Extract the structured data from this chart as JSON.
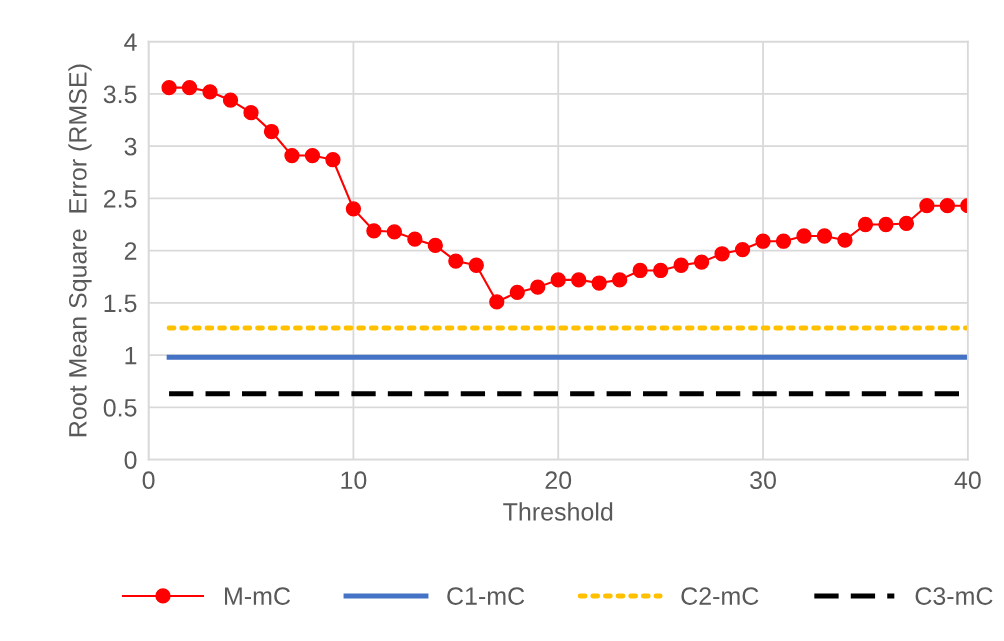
{
  "chart_data": {
    "type": "line",
    "xlabel": "Threshold",
    "ylabel": "Root Mean Square  Error (RMSE)",
    "x": [
      1,
      2,
      3,
      4,
      5,
      6,
      7,
      8,
      9,
      10,
      11,
      12,
      13,
      14,
      15,
      16,
      17,
      18,
      19,
      20,
      21,
      22,
      23,
      24,
      25,
      26,
      27,
      28,
      29,
      30,
      31,
      32,
      33,
      34,
      35,
      36,
      37,
      38,
      39,
      40
    ],
    "series": [
      {
        "name": "M-mC",
        "color": "#ff0000",
        "marker": "circle",
        "line_style": "solid",
        "values": [
          3.56,
          3.56,
          3.52,
          3.44,
          3.32,
          3.14,
          2.91,
          2.91,
          2.87,
          2.4,
          2.19,
          2.18,
          2.11,
          2.05,
          1.9,
          1.86,
          1.51,
          1.6,
          1.65,
          1.72,
          1.72,
          1.69,
          1.72,
          1.81,
          1.81,
          1.86,
          1.89,
          1.97,
          2.01,
          2.09,
          2.09,
          2.14,
          2.14,
          2.1,
          2.25,
          2.25,
          2.26,
          2.43,
          2.43,
          2.43
        ]
      },
      {
        "name": "C1-mC",
        "color": "#4472c4",
        "marker": "none",
        "line_style": "solid",
        "values": [
          0.98,
          0.98,
          0.98,
          0.98,
          0.98,
          0.98,
          0.98,
          0.98,
          0.98,
          0.98,
          0.98,
          0.98,
          0.98,
          0.98,
          0.98,
          0.98,
          0.98,
          0.98,
          0.98,
          0.98,
          0.98,
          0.98,
          0.98,
          0.98,
          0.98,
          0.98,
          0.98,
          0.98,
          0.98,
          0.98,
          0.98,
          0.98,
          0.98,
          0.98,
          0.98,
          0.98,
          0.98,
          0.98,
          0.98,
          0.98
        ]
      },
      {
        "name": "C2-mC",
        "color": "#ffc000",
        "marker": "none",
        "line_style": "dotted",
        "values": [
          1.26,
          1.26,
          1.26,
          1.26,
          1.26,
          1.26,
          1.26,
          1.26,
          1.26,
          1.26,
          1.26,
          1.26,
          1.26,
          1.26,
          1.26,
          1.26,
          1.26,
          1.26,
          1.26,
          1.26,
          1.26,
          1.26,
          1.26,
          1.26,
          1.26,
          1.26,
          1.26,
          1.26,
          1.26,
          1.26,
          1.26,
          1.26,
          1.26,
          1.26,
          1.26,
          1.26,
          1.26,
          1.26,
          1.26,
          1.26
        ]
      },
      {
        "name": "C3-mC",
        "color": "#000000",
        "marker": "none",
        "line_style": "dashed",
        "values": [
          0.63,
          0.63,
          0.63,
          0.63,
          0.63,
          0.63,
          0.63,
          0.63,
          0.63,
          0.63,
          0.63,
          0.63,
          0.63,
          0.63,
          0.63,
          0.63,
          0.63,
          0.63,
          0.63,
          0.63,
          0.63,
          0.63,
          0.63,
          0.63,
          0.63,
          0.63,
          0.63,
          0.63,
          0.63,
          0.63,
          0.63,
          0.63,
          0.63,
          0.63,
          0.63,
          0.63,
          0.63,
          0.63,
          0.63,
          0.63
        ]
      }
    ],
    "xlim": [
      0,
      40
    ],
    "xticks": [
      0,
      10,
      20,
      30,
      40
    ],
    "ylim": [
      0,
      4
    ],
    "yticks": [
      0,
      0.5,
      1,
      1.5,
      2,
      2.5,
      3,
      3.5,
      4
    ],
    "grid": true,
    "legend": "bottom"
  }
}
